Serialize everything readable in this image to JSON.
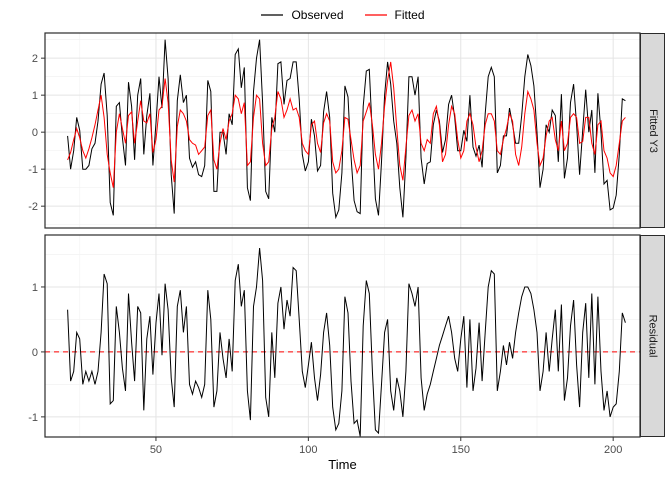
{
  "legend": {
    "items": [
      {
        "label": "Observed",
        "color": "#000000"
      },
      {
        "label": "Fitted",
        "color": "#FF0000"
      }
    ]
  },
  "colors": {
    "background": "#FFFFFF",
    "panel_border": "#2B2B2B",
    "grid_major": "#E4E4E4",
    "grid_minor": "#F2F2F2",
    "strip_bg": "#D9D9D9",
    "tick": "#333333",
    "tick_label": "#4D4D4D",
    "observed": "#000000",
    "fitted": "#FF0000",
    "zero_line": "#FF0000"
  },
  "chart_data": {
    "type": "line",
    "title": "",
    "xlabel": "Time",
    "legend_position": "top",
    "grid": true,
    "xlim": [
      13.6,
      208.8
    ],
    "x_ticks": [
      50,
      100,
      150,
      200
    ],
    "x_minor": [
      25,
      75,
      125,
      175
    ],
    "x": [
      21,
      22,
      23,
      24,
      25,
      26,
      27,
      28,
      29,
      30,
      31,
      32,
      33,
      34,
      35,
      36,
      37,
      38,
      39,
      40,
      41,
      42,
      43,
      44,
      45,
      46,
      47,
      48,
      49,
      50,
      51,
      52,
      53,
      54,
      55,
      56,
      57,
      58,
      59,
      60,
      61,
      62,
      63,
      64,
      65,
      66,
      67,
      68,
      69,
      70,
      71,
      72,
      73,
      74,
      75,
      76,
      77,
      78,
      79,
      80,
      81,
      82,
      83,
      84,
      85,
      86,
      87,
      88,
      89,
      90,
      91,
      92,
      93,
      94,
      95,
      96,
      97,
      98,
      99,
      100,
      101,
      102,
      103,
      104,
      105,
      106,
      107,
      108,
      109,
      110,
      111,
      112,
      113,
      114,
      115,
      116,
      117,
      118,
      119,
      120,
      121,
      122,
      123,
      124,
      125,
      126,
      127,
      128,
      129,
      130,
      131,
      132,
      133,
      134,
      135,
      136,
      137,
      138,
      139,
      140,
      141,
      142,
      143,
      144,
      145,
      146,
      147,
      148,
      149,
      150,
      151,
      152,
      153,
      154,
      155,
      156,
      157,
      158,
      159,
      160,
      161,
      162,
      163,
      164,
      165,
      166,
      167,
      168,
      169,
      170,
      171,
      172,
      173,
      174,
      175,
      176,
      177,
      178,
      179,
      180,
      181,
      182,
      183,
      184,
      185,
      186,
      187,
      188,
      189,
      190,
      191,
      192,
      193,
      194,
      195,
      196,
      197,
      198,
      199,
      200,
      201,
      202,
      203,
      204
    ],
    "facets": [
      {
        "strip": "Fitted Y3",
        "ylim": [
          -2.59,
          2.68
        ],
        "y_ticks": [
          2,
          1,
          0,
          -1,
          -2
        ],
        "y_minor": [
          2.5,
          1.5,
          0.5,
          -0.5,
          -1.5,
          -2.5
        ],
        "series": [
          {
            "name": "Observed",
            "color": "#000000",
            "values": [
              -0.1,
              -1.0,
              -0.5,
              0.4,
              0.05,
              -1.0,
              -1.0,
              -0.9,
              -0.45,
              -0.3,
              0.3,
              1.3,
              1.6,
              0.45,
              -1.9,
              -2.25,
              0.7,
              0.8,
              -0.15,
              -0.9,
              1.35,
              0.7,
              -0.75,
              1.0,
              1.45,
              -0.6,
              0.45,
              1.05,
              -0.9,
              0.25,
              1.5,
              0.65,
              2.5,
              1.45,
              -1.15,
              -2.2,
              0.85,
              1.55,
              0.8,
              1.0,
              -0.7,
              -0.95,
              -0.8,
              -1.15,
              -1.2,
              -0.9,
              1.4,
              1.1,
              -1.6,
              -1.6,
              0.0,
              0.0,
              -0.6,
              0.5,
              0.2,
              2.1,
              2.25,
              1.2,
              1.75,
              -1.5,
              -1.85,
              1.1,
              2.0,
              2.5,
              0.8,
              -1.6,
              -1.8,
              0.4,
              0.0,
              1.85,
              1.9,
              0.75,
              1.4,
              1.45,
              1.9,
              1.9,
              0.9,
              -0.6,
              -1.05,
              -0.8,
              0.35,
              -0.1,
              -1.05,
              -0.9,
              0.55,
              1.1,
              0.4,
              -1.65,
              -2.3,
              -2.1,
              -1.1,
              1.25,
              0.95,
              -0.65,
              -1.85,
              -2.15,
              -2.2,
              0.7,
              1.65,
              1.7,
              -0.1,
              -1.8,
              -2.25,
              -0.8,
              1.0,
              1.9,
              1.3,
              0.3,
              -0.3,
              -1.5,
              -2.3,
              -0.7,
              1.5,
              1.5,
              1.0,
              1.5,
              -0.7,
              -1.4,
              -0.85,
              -0.8,
              0.2,
              0.6,
              0.3,
              -0.55,
              -0.2,
              0.75,
              1.0,
              0.4,
              -0.5,
              -0.5,
              0.05,
              -0.25,
              1.0,
              -0.4,
              -0.65,
              -0.35,
              -0.95,
              0.5,
              1.5,
              1.75,
              1.5,
              -1.1,
              -0.9,
              -0.1,
              -0.1,
              0.65,
              0.2,
              -0.3,
              -0.3,
              0.45,
              1.5,
              2.1,
              1.8,
              1.25,
              0.0,
              -1.5,
              -1.0,
              0.2,
              0.0,
              0.6,
              0.45,
              -0.8,
              1.03,
              -1.25,
              -0.7,
              0.8,
              1.3,
              0.2,
              -1.15,
              0.05,
              1.15,
              0.0,
              0.6,
              -1.1,
              1.05,
              0.0,
              -1.4,
              -1.3,
              -2.1,
              -2.05,
              -1.7,
              -0.6,
              0.9,
              0.85
            ]
          },
          {
            "name": "Fitted",
            "color": "#FF0000",
            "values": [
              -0.75,
              -0.55,
              -0.2,
              0.1,
              -0.15,
              -0.5,
              -0.7,
              -0.45,
              -0.15,
              0.2,
              0.6,
              1.0,
              0.4,
              -0.6,
              -1.1,
              -1.5,
              0.0,
              0.5,
              0.1,
              -0.3,
              0.45,
              0.55,
              -0.3,
              0.3,
              0.85,
              0.3,
              0.25,
              0.5,
              -0.55,
              -0.2,
              0.6,
              0.7,
              1.45,
              0.8,
              -0.75,
              -1.35,
              0.15,
              0.6,
              0.5,
              0.3,
              -0.2,
              -0.3,
              -0.35,
              -0.6,
              -0.5,
              -0.4,
              0.45,
              0.6,
              -0.75,
              -1.0,
              -0.3,
              0.1,
              -0.2,
              0.3,
              0.5,
              1.0,
              0.9,
              0.5,
              0.8,
              -0.9,
              -0.8,
              0.4,
              1.0,
              0.9,
              -0.3,
              -0.9,
              -0.8,
              0.1,
              0.4,
              1.1,
              0.9,
              0.4,
              0.6,
              0.9,
              0.6,
              0.65,
              0.4,
              -0.3,
              -0.5,
              -0.6,
              0.2,
              0.3,
              -0.3,
              -0.55,
              0.25,
              0.5,
              0.3,
              -0.8,
              -1.1,
              -1.0,
              -0.5,
              0.4,
              0.35,
              -0.2,
              -0.75,
              -1.1,
              -0.9,
              0.3,
              0.55,
              0.8,
              0.2,
              -0.6,
              -1.0,
              -0.3,
              0.7,
              1.4,
              1.9,
              1.2,
              0.1,
              -0.9,
              -1.3,
              -0.4,
              0.45,
              0.6,
              0.3,
              0.5,
              -0.3,
              -0.5,
              -0.2,
              -0.3,
              0.5,
              0.7,
              0.2,
              -0.8,
              -0.6,
              0.2,
              0.7,
              0.5,
              -0.2,
              -0.7,
              -0.5,
              0.3,
              0.5,
              0.2,
              -0.4,
              -0.8,
              -0.5,
              0.2,
              0.5,
              0.5,
              0.3,
              -0.5,
              -0.6,
              -0.2,
              0.1,
              0.5,
              0.3,
              -0.6,
              -0.9,
              -0.4,
              0.5,
              1.1,
              0.9,
              0.6,
              -0.3,
              -0.9,
              -0.7,
              -0.1,
              0.3,
              0.4,
              -0.2,
              -0.5,
              0.3,
              -0.5,
              -0.3,
              0.4,
              0.5,
              0.4,
              -0.3,
              -0.25,
              0.4,
              0.4,
              -0.3,
              -0.6,
              0.2,
              0.3,
              -0.5,
              -0.7,
              -1.1,
              -1.2,
              -0.9,
              -0.3,
              0.3,
              0.4
            ]
          }
        ]
      },
      {
        "strip": "Residual",
        "ylim": [
          -1.31,
          1.8
        ],
        "y_ticks": [
          1,
          0,
          -1
        ],
        "y_minor": [
          1.5,
          0.5,
          -0.5
        ],
        "hline": {
          "y": 0,
          "color": "#FF0000",
          "linetype": "dashed"
        },
        "series": [
          {
            "name": "Residual",
            "color": "#000000",
            "values": [
              0.65,
              -0.45,
              -0.3,
              0.3,
              0.2,
              -0.5,
              -0.3,
              -0.45,
              -0.3,
              -0.5,
              -0.3,
              0.3,
              1.2,
              1.05,
              -0.8,
              -0.75,
              0.7,
              0.3,
              -0.25,
              -0.6,
              0.9,
              0.15,
              -0.45,
              0.7,
              0.6,
              -0.9,
              0.2,
              0.55,
              -0.35,
              0.45,
              0.9,
              -0.05,
              1.05,
              0.65,
              -0.4,
              -0.85,
              0.7,
              0.95,
              0.3,
              0.7,
              -0.5,
              -0.65,
              -0.45,
              -0.55,
              -0.7,
              -0.5,
              0.95,
              0.5,
              -0.85,
              -0.6,
              0.3,
              -0.1,
              -0.4,
              0.2,
              -0.3,
              1.1,
              1.35,
              0.7,
              0.95,
              -0.6,
              -1.05,
              0.7,
              1.0,
              1.6,
              1.1,
              -0.7,
              -1.0,
              0.3,
              -0.4,
              0.75,
              1.0,
              0.35,
              0.8,
              0.55,
              1.3,
              1.25,
              0.5,
              -0.3,
              -0.55,
              -0.2,
              0.15,
              -0.4,
              -0.75,
              -0.35,
              0.3,
              0.6,
              0.1,
              -0.85,
              -1.2,
              -1.1,
              -0.6,
              0.85,
              0.6,
              -0.45,
              -1.1,
              -1.05,
              -1.3,
              0.4,
              1.1,
              0.9,
              -0.3,
              -1.2,
              -1.25,
              -0.5,
              0.3,
              0.5,
              -0.6,
              -0.9,
              -0.4,
              -0.6,
              -1.0,
              -0.3,
              1.05,
              0.9,
              0.7,
              1.0,
              -0.4,
              -0.9,
              -0.65,
              -0.5,
              -0.3,
              -0.1,
              0.1,
              0.25,
              0.4,
              0.55,
              0.3,
              -0.1,
              -0.3,
              0.2,
              0.55,
              -0.55,
              0.5,
              -0.6,
              -0.25,
              0.45,
              -0.45,
              0.3,
              1.0,
              1.25,
              1.2,
              -0.6,
              -0.3,
              0.1,
              -0.2,
              0.15,
              -0.1,
              0.3,
              0.6,
              0.85,
              1.0,
              1.0,
              0.9,
              0.65,
              0.3,
              -0.6,
              -0.3,
              0.3,
              -0.3,
              0.2,
              0.65,
              -0.3,
              0.73,
              -0.75,
              -0.4,
              0.4,
              0.8,
              -0.2,
              -0.85,
              0.3,
              0.75,
              -0.4,
              0.9,
              -0.5,
              0.85,
              -0.3,
              -0.9,
              -0.6,
              -1.0,
              -0.85,
              -0.8,
              -0.3,
              0.6,
              0.45
            ]
          }
        ]
      }
    ]
  }
}
